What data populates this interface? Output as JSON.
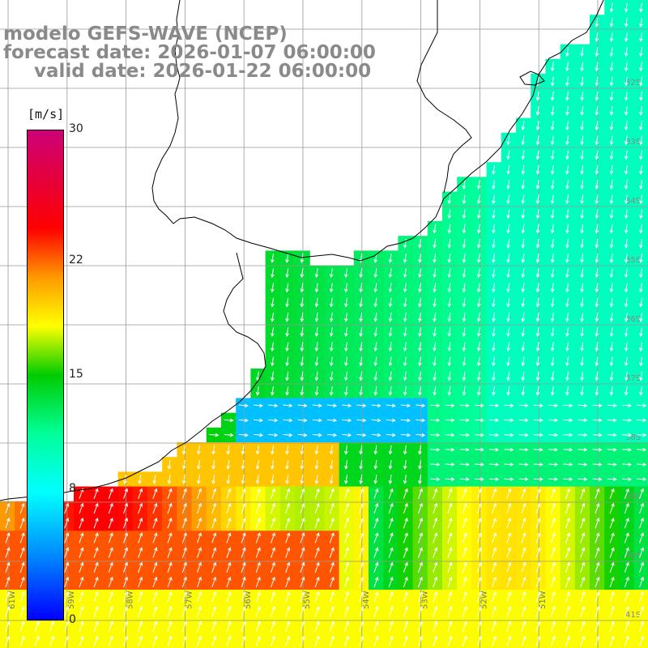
{
  "title": {
    "line1": "modelo GEFS-WAVE (NCEP)",
    "line2": "forecast date: 2026-01-07 06:00:00",
    "line3": "valid date: 2026-01-22 06:00:00"
  },
  "colorbar": {
    "unit": "[m/s]",
    "ticks": [
      "30",
      "22",
      "15",
      "8",
      "0"
    ],
    "tick_values": [
      30,
      22,
      15,
      8,
      0
    ],
    "min": 0,
    "max": 30,
    "colors": [
      "#0000ff",
      "#0088ff",
      "#00ffff",
      "#00ff99",
      "#00cc00",
      "#ffff00",
      "#ff9900",
      "#ff0000",
      "#cc0077"
    ]
  },
  "axes": {
    "lon_labels": [
      "61W",
      "59W",
      "58W",
      "57W",
      "56W",
      "55W",
      "54W",
      "53W",
      "52W",
      "51W"
    ],
    "lat_labels": [
      "32S",
      "33S",
      "34S",
      "35S",
      "36S",
      "37S",
      "38S",
      "39S",
      "40S",
      "41S"
    ]
  },
  "colors": {
    "land": "#ffffff",
    "coastline": "#000000",
    "grid": "#999999",
    "arrows": "#ffffff",
    "title_text": "#8a8a8a"
  }
}
